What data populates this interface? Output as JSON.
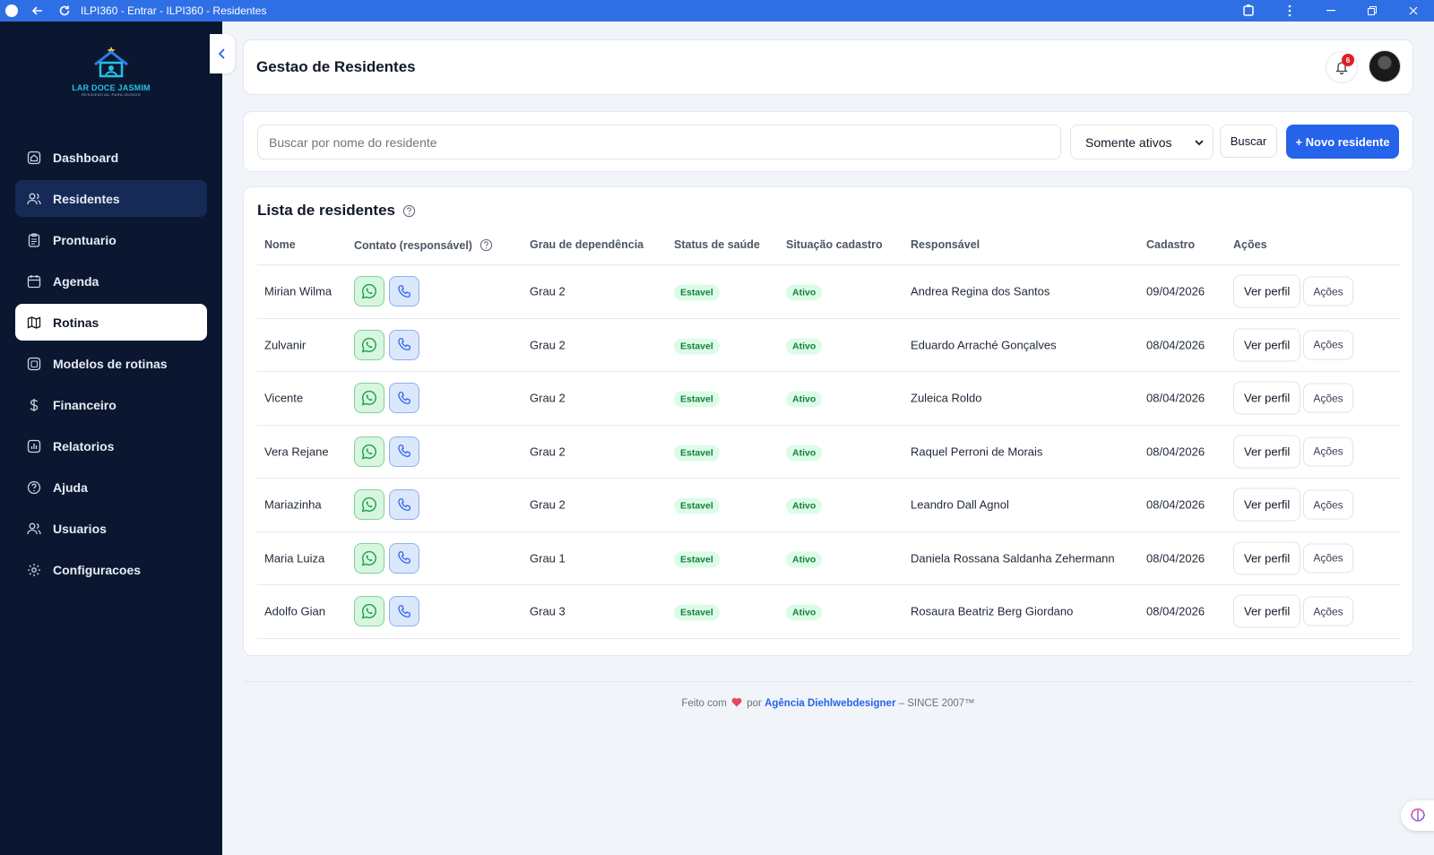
{
  "window": {
    "title": "ILPI360 - Entrar - ILPI360 - Residentes"
  },
  "brand": {
    "name": "LAR DOCE JASMIM",
    "tagline": "RESIDENCIAL PARA IDOSOS"
  },
  "sidebar": {
    "items": [
      {
        "label": "Dashboard",
        "icon": "home-icon"
      },
      {
        "label": "Residentes",
        "icon": "users-icon"
      },
      {
        "label": "Prontuario",
        "icon": "clipboard-icon"
      },
      {
        "label": "Agenda",
        "icon": "calendar-icon"
      },
      {
        "label": "Rotinas",
        "icon": "map-icon"
      },
      {
        "label": "Modelos de rotinas",
        "icon": "copy-icon"
      },
      {
        "label": "Financeiro",
        "icon": "dollar-icon"
      },
      {
        "label": "Relatorios",
        "icon": "bar-chart-icon"
      },
      {
        "label": "Ajuda",
        "icon": "help-circle-icon"
      },
      {
        "label": "Usuarios",
        "icon": "users-icon"
      },
      {
        "label": "Configuracoes",
        "icon": "gear-icon"
      }
    ]
  },
  "header": {
    "title": "Gestao de Residentes",
    "notifications_count": "6"
  },
  "search": {
    "placeholder": "Buscar por nome do residente",
    "filter_selected": "Somente ativos",
    "search_label": "Buscar",
    "new_label": "+ Novo residente"
  },
  "list": {
    "title": "Lista de residentes",
    "columns": {
      "nome": "Nome",
      "contato": "Contato (responsável)",
      "grau": "Grau de dependência",
      "status": "Status de saúde",
      "situacao": "Situação cadastro",
      "responsavel": "Responsável",
      "cadastro": "Cadastro",
      "acoes": "Ações"
    },
    "rows": [
      {
        "nome": "Mirian Wilma",
        "grau": "Grau 2",
        "status": "Estavel",
        "situacao": "Ativo",
        "responsavel": "Andrea Regina dos Santos",
        "cadastro": "09/04/2026"
      },
      {
        "nome": "Zulvanir",
        "grau": "Grau 2",
        "status": "Estavel",
        "situacao": "Ativo",
        "responsavel": "Eduardo Arraché Gonçalves",
        "cadastro": "08/04/2026"
      },
      {
        "nome": "Vicente",
        "grau": "Grau 2",
        "status": "Estavel",
        "situacao": "Ativo",
        "responsavel": "Zuleica Roldo",
        "cadastro": "08/04/2026"
      },
      {
        "nome": "Vera Rejane",
        "grau": "Grau 2",
        "status": "Estavel",
        "situacao": "Ativo",
        "responsavel": "Raquel Perroni de Morais",
        "cadastro": "08/04/2026"
      },
      {
        "nome": "Mariazinha",
        "grau": "Grau 2",
        "status": "Estavel",
        "situacao": "Ativo",
        "responsavel": "Leandro Dall Agnol",
        "cadastro": "08/04/2026"
      },
      {
        "nome": "Maria Luiza",
        "grau": "Grau 1",
        "status": "Estavel",
        "situacao": "Ativo",
        "responsavel": "Daniela Rossana Saldanha Zehermann",
        "cadastro": "08/04/2026"
      },
      {
        "nome": "Adolfo Gian",
        "grau": "Grau 3",
        "status": "Estavel",
        "situacao": "Ativo",
        "responsavel": "Rosaura Beatriz Berg Giordano",
        "cadastro": "08/04/2026"
      }
    ],
    "view_label": "Ver perfil",
    "actions_label": "Ações"
  },
  "footer": {
    "prefix": "Feito com",
    "by": "por",
    "agency": "Agência Diehlwebdesigner",
    "suffix": "– SINCE 2007™"
  },
  "colors": {
    "primary": "#2563eb",
    "sidebar_bg": "#0b1730",
    "titlebar": "#2f6fe6",
    "success": "#15803d"
  }
}
